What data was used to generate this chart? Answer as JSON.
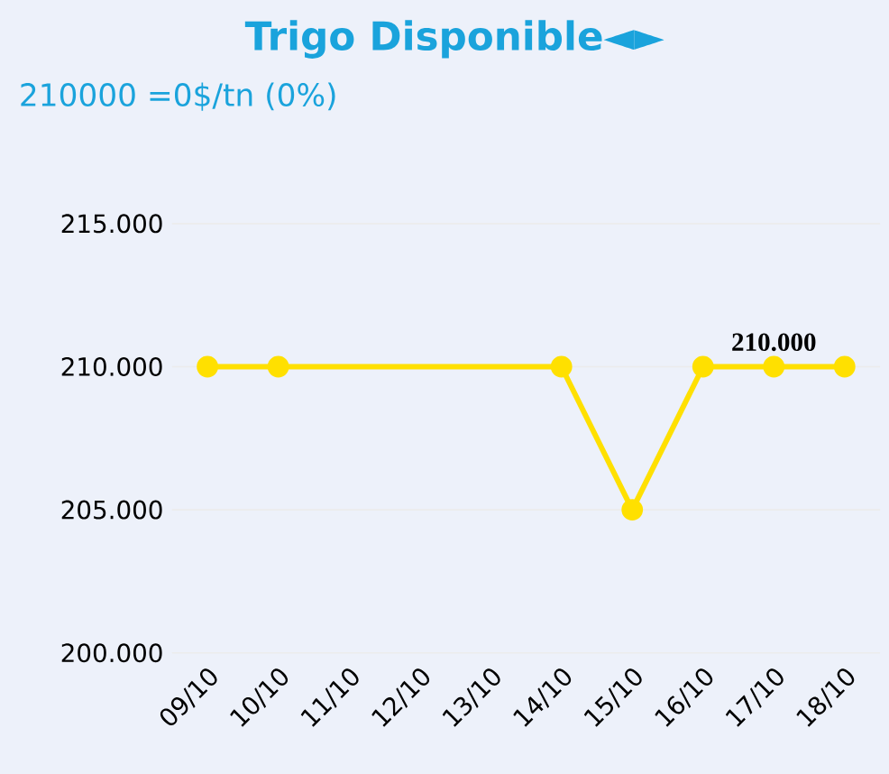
{
  "chart_data": {
    "type": "line",
    "title": "Trigo Disponible◄►",
    "subtitle": "210000 =0$/tn (0%)",
    "categories": [
      "09/10",
      "10/10",
      "11/10",
      "12/10",
      "13/10",
      "14/10",
      "15/10",
      "16/10",
      "17/10",
      "18/10"
    ],
    "series": [
      {
        "color": "#ffe000",
        "values": [
          210000,
          210000,
          null,
          null,
          null,
          210000,
          205000,
          210000,
          210000,
          210000
        ]
      }
    ],
    "ylim": [
      200000,
      215000
    ],
    "yticks": [
      {
        "value": 200000,
        "label": "200.000"
      },
      {
        "value": 205000,
        "label": "205.000"
      },
      {
        "value": 210000,
        "label": "210.000"
      },
      {
        "value": 215000,
        "label": "215.000"
      }
    ],
    "grid": "y",
    "marker": "circle",
    "line_style": "solid",
    "annotations": [
      {
        "text": "210.000",
        "x": "17/10",
        "y": 210000
      }
    ]
  }
}
